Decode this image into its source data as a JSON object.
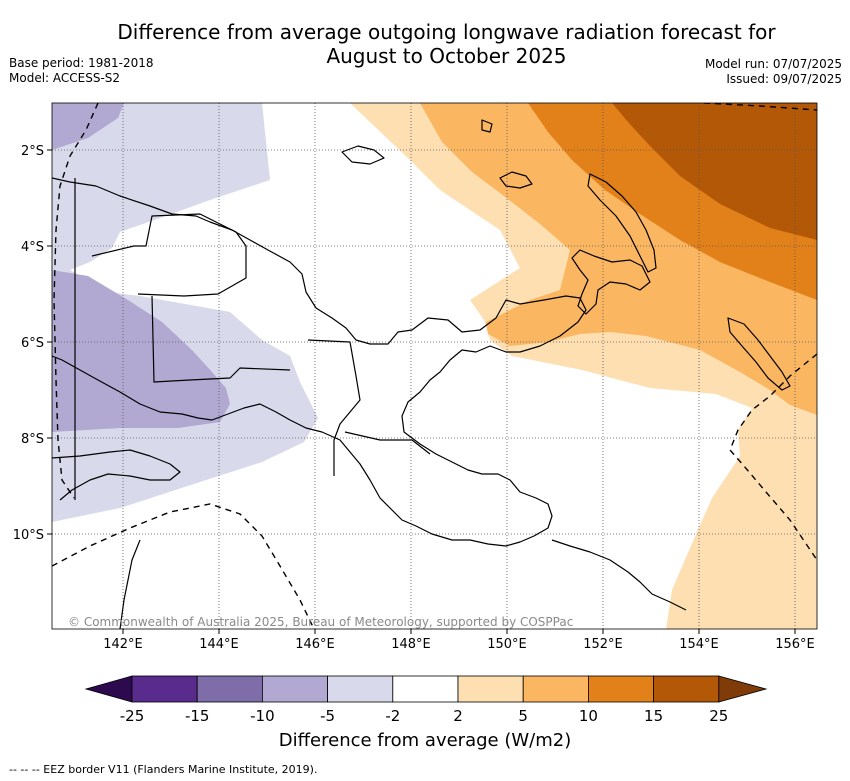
{
  "title_line1": "Difference from average outgoing longwave radiation forecast for",
  "title_line2": "August to October 2025",
  "base_period": "Base period: 1981-2018",
  "model": "Model: ACCESS-S2",
  "model_run": "Model run: 07/07/2025",
  "issued": "Issued: 09/07/2025",
  "copyright": "© Commonwealth of Australia 2025, Bureau of Meteorology, supported by COSPPac",
  "eez_note": "--  --  -- EEZ border V11 (Flanders Marine Institute, 2019).",
  "map": {
    "lon_range": [
      140.5,
      156.5
    ],
    "lat_range": [
      -12.0,
      -1.0
    ],
    "lon_ticks": [
      "142°E",
      "144°E",
      "146°E",
      "148°E",
      "150°E",
      "152°E",
      "154°E",
      "156°E"
    ],
    "lat_ticks": [
      "2°S",
      "4°S",
      "6°S",
      "8°S",
      "10°S"
    ],
    "grid": true
  },
  "colorbar": {
    "title": "Difference from average (W/m2)",
    "labels": [
      "-25",
      "-15",
      "-10",
      "-5",
      "-2",
      "2",
      "5",
      "10",
      "15",
      "25"
    ],
    "colors": [
      "#582b8c",
      "#7e6da8",
      "#b1a9d1",
      "#d8d9ea",
      "#ffffff",
      "#fddfb2",
      "#fbb662",
      "#e2811a",
      "#b35806"
    ],
    "end_low": "#2d0a4e",
    "end_high": "#7f3b08"
  }
}
